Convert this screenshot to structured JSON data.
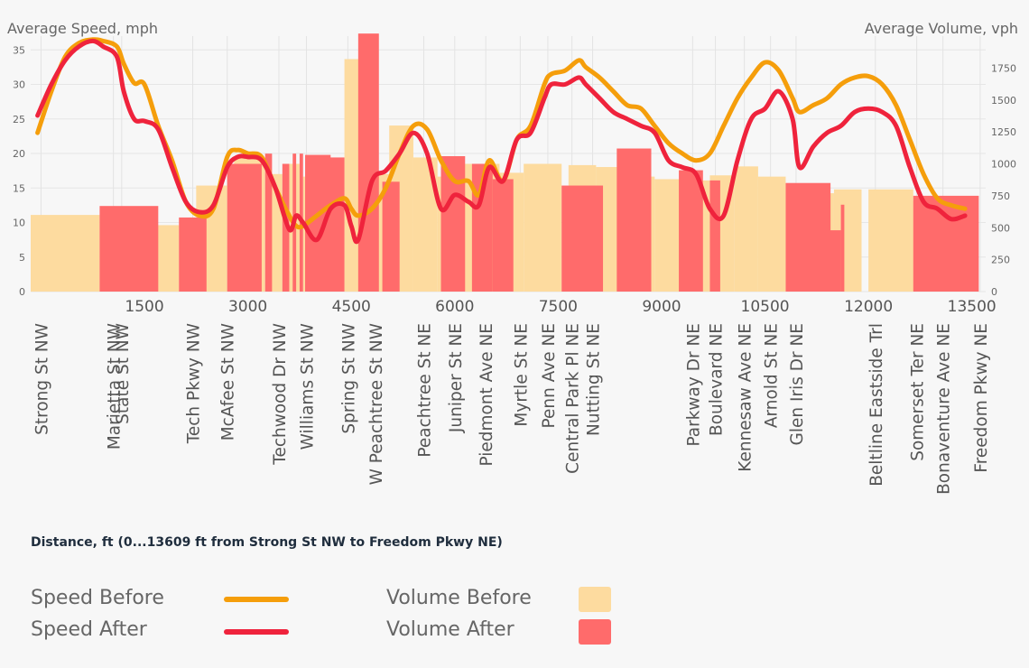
{
  "chart_data": {
    "type": "line-bar-combo",
    "title": "",
    "xlabel": "Distance, ft (0...13609 ft from Strong St NW to Freedom Pkwy NE)",
    "ylabel_left": "Average Speed, mph",
    "ylabel_right": "Average Volume, vph",
    "xlim": [
      -150,
      13700
    ],
    "ylim_left": [
      0,
      37
    ],
    "ylim_right": [
      0,
      2000
    ],
    "x_ticks": [
      1500,
      3000,
      4500,
      6000,
      7500,
      9000,
      10500,
      12000,
      13500
    ],
    "y_left_ticks": [
      0,
      5,
      10,
      15,
      20,
      25,
      30,
      35
    ],
    "y_right_ticks": [
      0,
      250,
      500,
      750,
      1000,
      1250,
      1500,
      1750
    ],
    "streets": [
      {
        "name": "Strong St NW",
        "x": 0
      },
      {
        "name": "Marietta St NW",
        "x": 1050
      },
      {
        "name": "State St NW",
        "x": 1170
      },
      {
        "name": "Tech Pkwy NW",
        "x": 2200
      },
      {
        "name": "McAfee St NW",
        "x": 2700
      },
      {
        "name": "Techwood Dr NW",
        "x": 3450
      },
      {
        "name": "Williams St NW",
        "x": 3850
      },
      {
        "name": "Spring St NW",
        "x": 4450
      },
      {
        "name": "W Peachtree St NW",
        "x": 4850
      },
      {
        "name": "Peachtree St NE",
        "x": 5550
      },
      {
        "name": "Juniper St NE",
        "x": 6000
      },
      {
        "name": "Piedmont Ave NE",
        "x": 6450
      },
      {
        "name": "Myrtle St NE",
        "x": 6950
      },
      {
        "name": "Penn Ave NE",
        "x": 7350
      },
      {
        "name": "Central Park Pl NE",
        "x": 7700
      },
      {
        "name": "Nutting St NE",
        "x": 8000
      },
      {
        "name": "Parkway Dr NE",
        "x": 9450
      },
      {
        "name": "Boulevard NE",
        "x": 9780
      },
      {
        "name": "Kennesaw Ave NE",
        "x": 10200
      },
      {
        "name": "Arnold St NE",
        "x": 10580
      },
      {
        "name": "Glen Iris Dr NE",
        "x": 10950
      },
      {
        "name": "Beltline Eastside Trl",
        "x": 12100
      },
      {
        "name": "Somerset Ter NE",
        "x": 12700
      },
      {
        "name": "Bonaventure Ave NE",
        "x": 13080
      },
      {
        "name": "Freedom Pkwy NE",
        "x": 13620
      }
    ],
    "series": [
      {
        "name": "Speed Before",
        "kind": "line",
        "axis": "left",
        "color": "#f59e0b",
        "x": [
          -50,
          150,
          350,
          550,
          750,
          900,
          1100,
          1200,
          1350,
          1500,
          1700,
          1900,
          2100,
          2300,
          2500,
          2700,
          2850,
          3000,
          3200,
          3400,
          3600,
          3700,
          3800,
          4000,
          4200,
          4400,
          4500,
          4600,
          4800,
          5000,
          5200,
          5400,
          5600,
          5800,
          6000,
          6200,
          6350,
          6500,
          6700,
          6900,
          7100,
          7300,
          7400,
          7600,
          7800,
          7900,
          8100,
          8300,
          8500,
          8700,
          8900,
          9100,
          9300,
          9500,
          9700,
          9900,
          10100,
          10300,
          10500,
          10700,
          10900,
          11000,
          11200,
          11400,
          11600,
          11800,
          12000,
          12200,
          12400,
          12600,
          12800,
          13000,
          13200,
          13400
        ],
        "y": [
          23,
          29,
          34,
          36,
          36.5,
          36.3,
          35.5,
          33,
          30.2,
          30,
          24,
          19,
          13,
          11,
          12,
          19.5,
          20.5,
          20,
          19.5,
          15,
          11,
          9.5,
          9.5,
          11,
          12.5,
          13.5,
          12,
          11,
          12,
          15,
          20,
          24,
          23.5,
          19,
          16,
          16,
          14,
          19,
          16,
          22,
          24,
          30,
          31.5,
          32,
          33.5,
          32.5,
          31,
          29,
          27,
          26.5,
          24,
          21.5,
          20,
          19,
          20,
          24,
          28,
          31,
          33.2,
          32,
          28,
          26,
          27,
          28,
          30,
          31,
          31.2,
          30,
          27,
          22,
          17,
          13.5,
          12.5,
          12
        ]
      },
      {
        "name": "Speed After",
        "kind": "line",
        "axis": "left",
        "color": "#ef233c",
        "x": [
          -50,
          150,
          350,
          550,
          750,
          900,
          1100,
          1200,
          1350,
          1500,
          1700,
          1900,
          2100,
          2300,
          2500,
          2700,
          2850,
          3000,
          3200,
          3400,
          3600,
          3700,
          3800,
          4000,
          4200,
          4400,
          4500,
          4600,
          4800,
          5000,
          5200,
          5400,
          5600,
          5800,
          6000,
          6200,
          6350,
          6500,
          6700,
          6900,
          7100,
          7300,
          7400,
          7600,
          7800,
          7900,
          8100,
          8300,
          8500,
          8700,
          8900,
          9100,
          9300,
          9500,
          9700,
          9900,
          10100,
          10300,
          10500,
          10700,
          10900,
          11000,
          11200,
          11400,
          11600,
          11800,
          12000,
          12200,
          12400,
          12600,
          12800,
          13000,
          13200,
          13400
        ],
        "y": [
          25.5,
          30,
          33.5,
          35.5,
          36.3,
          35.5,
          34,
          29,
          25,
          24.7,
          23.5,
          18,
          13,
          11.5,
          12.5,
          18,
          19.5,
          19.5,
          19,
          15,
          9,
          11,
          10,
          7.5,
          12,
          12.5,
          9.5,
          7.5,
          16,
          17.5,
          20,
          23,
          20,
          12,
          14,
          13,
          12.5,
          18,
          16,
          22,
          23,
          28,
          30,
          30,
          31,
          30,
          28,
          26,
          25,
          24,
          23,
          19,
          18,
          17,
          12,
          11,
          19,
          25,
          26.5,
          29,
          25,
          18,
          21,
          23,
          24,
          26,
          26.5,
          26,
          24,
          18,
          13,
          12,
          10.5,
          11
        ]
      },
      {
        "name": "Volume Before",
        "kind": "bar",
        "axis": "right",
        "color": "#fddb9f",
        "x0": [
          -150,
          1000,
          1600,
          2250,
          2800,
          3300,
          3600,
          3800,
          4100,
          4400,
          4800,
          5050,
          5400,
          5750,
          6000,
          6400,
          6650,
          7000,
          7650,
          8050,
          8550,
          8900,
          9350,
          9700,
          10050,
          10400,
          11000,
          11250,
          11500,
          12000,
          12550
        ],
        "x1": [
          850,
          1400,
          2000,
          2700,
          3250,
          3500,
          3750,
          4050,
          4400,
          4750,
          5050,
          5400,
          5750,
          6000,
          6400,
          6650,
          7000,
          7550,
          8050,
          8550,
          8900,
          9350,
          9700,
          10050,
          10400,
          10800,
          11250,
          11500,
          11900,
          12650,
          13100
        ],
        "y": [
          600,
          550,
          520,
          830,
          1050,
          920,
          1000,
          900,
          920,
          1820,
          920,
          1300,
          1050,
          900,
          1000,
          1000,
          930,
          1000,
          990,
          975,
          900,
          880,
          870,
          910,
          980,
          900,
          830,
          770,
          800,
          800,
          710
        ]
      },
      {
        "name": "Volume After",
        "kind": "bar",
        "axis": "right",
        "color": "#ff6b6b",
        "x0": [
          850,
          2000,
          2700,
          3250,
          3500,
          3650,
          3750,
          3830,
          4050,
          4600,
          4950,
          5800,
          6250,
          6550,
          7550,
          8350,
          9250,
          9700,
          10800,
          11300,
          11600,
          12650
        ],
        "x1": [
          1700,
          2400,
          3200,
          3350,
          3600,
          3700,
          3800,
          4200,
          4400,
          4900,
          5200,
          6150,
          6550,
          6850,
          8150,
          8850,
          9600,
          9850,
          11450,
          11600,
          11650,
          13600
        ],
        "y": [
          670,
          580,
          1000,
          1080,
          1000,
          1080,
          1080,
          1070,
          1050,
          2020,
          860,
          1060,
          1000,
          880,
          830,
          1120,
          950,
          870,
          850,
          480,
          680,
          750
        ]
      }
    ],
    "legend": {
      "speed_before": "Speed Before",
      "speed_after": "Speed After",
      "volume_before": "Volume Before",
      "volume_after": "Volume After"
    }
  }
}
